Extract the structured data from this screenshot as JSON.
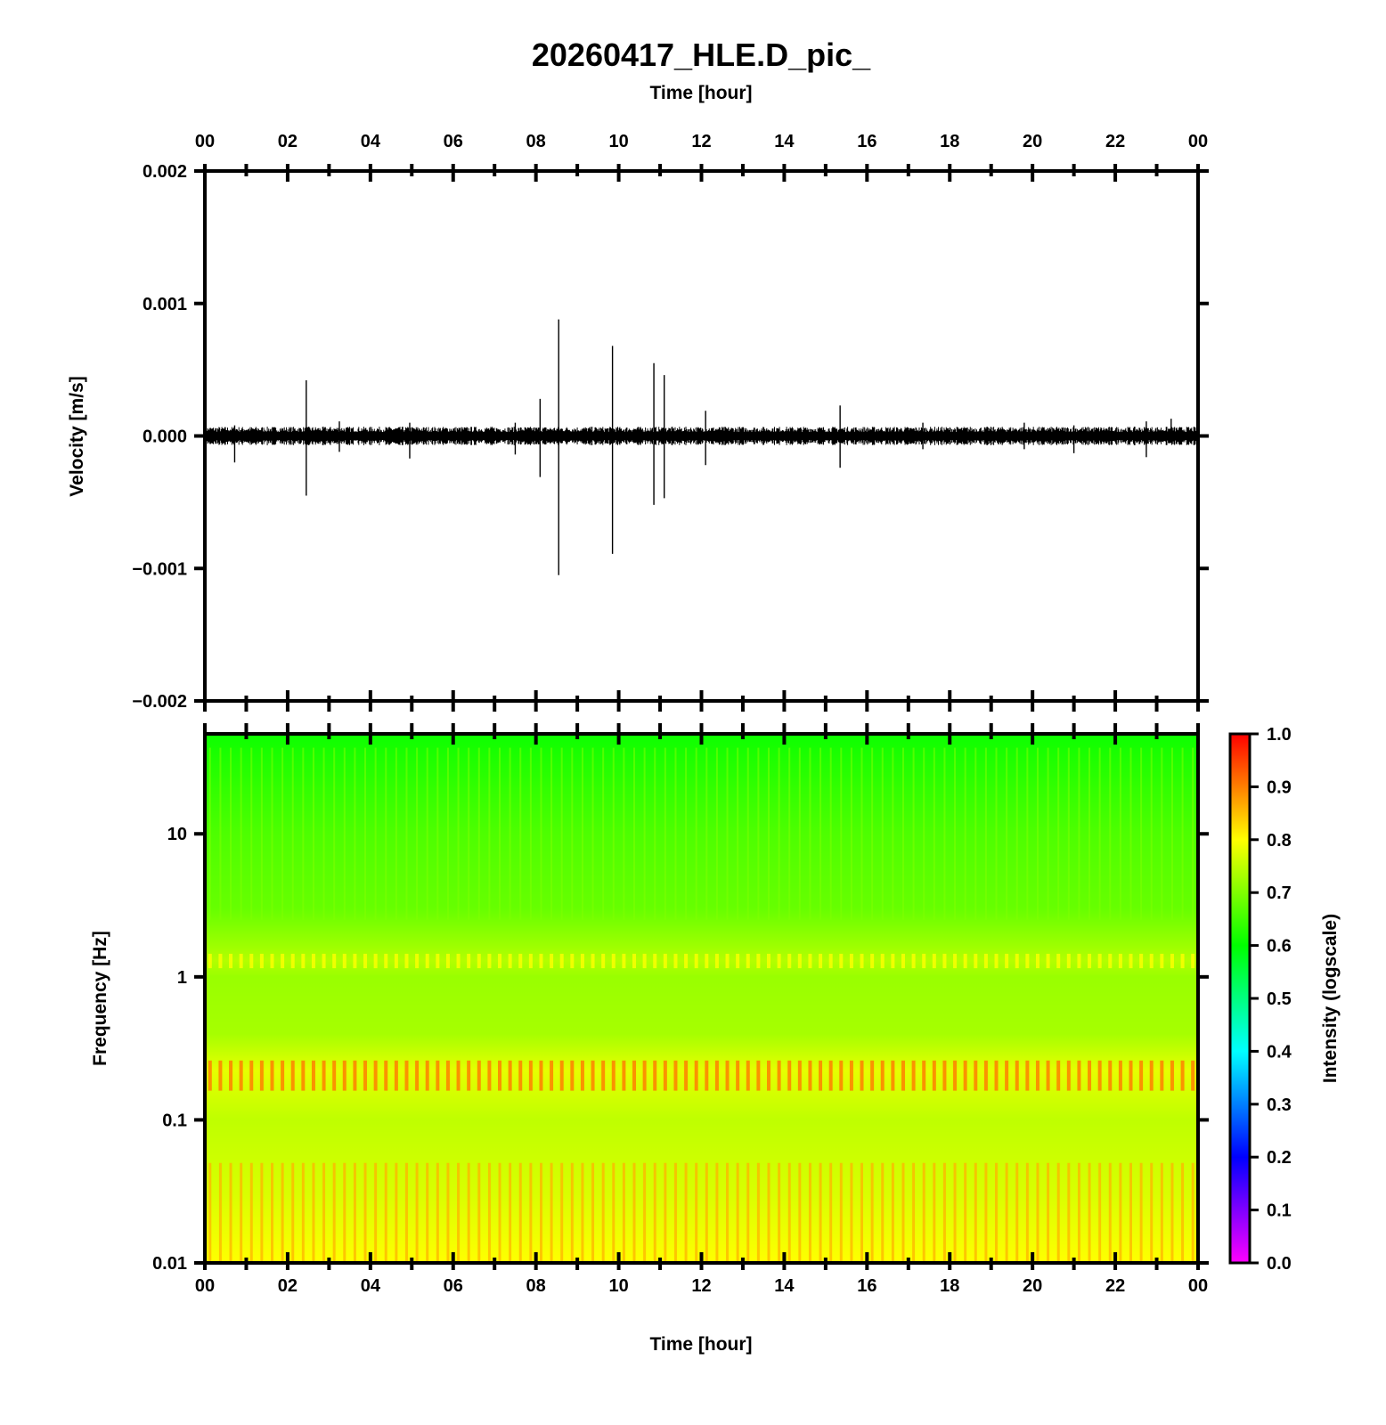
{
  "chart_data": [
    {
      "type": "line",
      "title": "20260417_HLE.D_pic_",
      "xlabel": "Time [hour]",
      "ylabel": "Velocity [m/s]",
      "xlim": [
        0,
        24
      ],
      "ylim": [
        -0.002,
        0.002
      ],
      "x_tick_labels": [
        "00",
        "02",
        "04",
        "06",
        "08",
        "10",
        "12",
        "14",
        "16",
        "18",
        "20",
        "22",
        "00"
      ],
      "y_ticks": [
        0.002,
        0.001,
        0.0,
        -0.001,
        -0.002
      ],
      "y_tick_labels": [
        "0.002",
        "0.001",
        "0.000",
        "−0.001",
        "−0.002"
      ],
      "noise_amplitude": 5e-05,
      "spikes": [
        {
          "x": 0.72,
          "ymax": 8e-05,
          "ymin": -0.0002
        },
        {
          "x": 2.45,
          "ymax": 0.00042,
          "ymin": -0.00045
        },
        {
          "x": 3.25,
          "ymax": 0.00011,
          "ymin": -0.00012
        },
        {
          "x": 4.95,
          "ymax": 0.0001,
          "ymin": -0.00017
        },
        {
          "x": 7.5,
          "ymax": 0.0001,
          "ymin": -0.00014
        },
        {
          "x": 8.1,
          "ymax": 0.00028,
          "ymin": -0.00031
        },
        {
          "x": 8.55,
          "ymax": 0.00088,
          "ymin": -0.00105
        },
        {
          "x": 9.85,
          "ymax": 0.00068,
          "ymin": -0.00089
        },
        {
          "x": 10.85,
          "ymax": 0.00055,
          "ymin": -0.00052
        },
        {
          "x": 11.1,
          "ymax": 0.00046,
          "ymin": -0.00047
        },
        {
          "x": 12.1,
          "ymax": 0.00019,
          "ymin": -0.00022
        },
        {
          "x": 15.35,
          "ymax": 0.00023,
          "ymin": -0.00024
        },
        {
          "x": 17.35,
          "ymax": 0.0001,
          "ymin": -0.0001
        },
        {
          "x": 19.8,
          "ymax": 0.0001,
          "ymin": -0.0001
        },
        {
          "x": 21.0,
          "ymax": 8e-05,
          "ymin": -0.00013
        },
        {
          "x": 22.75,
          "ymax": 0.00011,
          "ymin": -0.00016
        },
        {
          "x": 23.35,
          "ymax": 0.00013,
          "ymin": -5e-05
        }
      ]
    },
    {
      "type": "heatmap",
      "xlabel": "Time [hour]",
      "ylabel": "Frequency [Hz]",
      "xlim": [
        0,
        24
      ],
      "ylim": [
        0.01,
        50
      ],
      "y_scale": "log",
      "x_tick_labels": [
        "00",
        "02",
        "04",
        "06",
        "08",
        "10",
        "12",
        "14",
        "16",
        "18",
        "20",
        "22",
        "00"
      ],
      "y_ticks": [
        10,
        1,
        0.1,
        0.01
      ],
      "y_tick_labels": [
        "10",
        "1",
        "0.1",
        "0.01"
      ],
      "columns": 96,
      "intensity_profile": [
        {
          "f": 50,
          "v": 0.61
        },
        {
          "f": 20,
          "v": 0.64
        },
        {
          "f": 10,
          "v": 0.66
        },
        {
          "f": 3,
          "v": 0.68
        },
        {
          "f": 1.3,
          "v": 0.74
        },
        {
          "f": 1,
          "v": 0.72
        },
        {
          "f": 0.4,
          "v": 0.73
        },
        {
          "f": 0.22,
          "v": 0.78
        },
        {
          "f": 0.1,
          "v": 0.75
        },
        {
          "f": 0.03,
          "v": 0.77
        },
        {
          "f": 0.01,
          "v": 0.8
        }
      ],
      "colorbar": {
        "label": "Intensity (logscale)",
        "range": [
          0.0,
          1.0
        ],
        "ticks": [
          1.0,
          0.9,
          0.8,
          0.7,
          0.6,
          0.5,
          0.4,
          0.3,
          0.2,
          0.1,
          0.0
        ],
        "tick_labels": [
          "1.0",
          "0.9",
          "0.8",
          "0.7",
          "0.6",
          "0.5",
          "0.4",
          "0.3",
          "0.2",
          "0.1",
          "0.0"
        ],
        "colors": [
          "#ff00ff",
          "#0000ff",
          "#00ffff",
          "#00ff00",
          "#ffff00",
          "#ff0000"
        ]
      }
    }
  ]
}
